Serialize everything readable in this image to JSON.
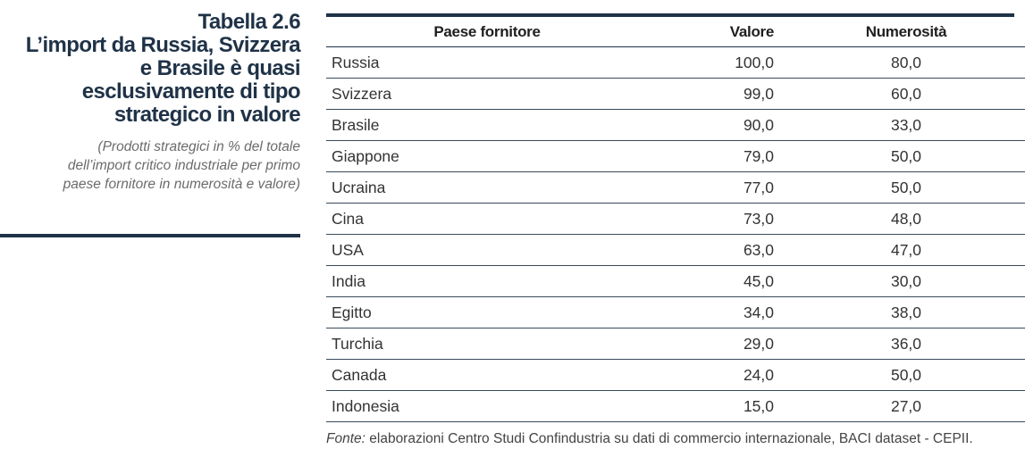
{
  "title": {
    "number": "Tabella 2.6",
    "lines": [
      "L’import da Russia, Svizzera",
      "e Brasile è quasi",
      "esclusivamente di tipo",
      "strategico in valore"
    ]
  },
  "subtitle": {
    "lines": [
      "(Prodotti strategici in % del totale",
      "dell’import critico industriale per primo",
      "paese fornitore in numerosità e valore)"
    ]
  },
  "table": {
    "headers": [
      "Paese fornitore",
      "Valore",
      "Numerosità"
    ],
    "rows": [
      [
        "Russia",
        "100,0",
        "80,0"
      ],
      [
        "Svizzera",
        "99,0",
        "60,0"
      ],
      [
        "Brasile",
        "90,0",
        "33,0"
      ],
      [
        "Giappone",
        "79,0",
        "50,0"
      ],
      [
        "Ucraina",
        "77,0",
        "50,0"
      ],
      [
        "Cina",
        "73,0",
        "48,0"
      ],
      [
        "USA",
        "63,0",
        "47,0"
      ],
      [
        "India",
        "45,0",
        "30,0"
      ],
      [
        "Egitto",
        "34,0",
        "38,0"
      ],
      [
        "Turchia",
        "29,0",
        "36,0"
      ],
      [
        "Canada",
        "24,0",
        "50,0"
      ],
      [
        "Indonesia",
        "15,0",
        "27,0"
      ]
    ]
  },
  "source": {
    "label": "Fonte:",
    "text": " elaborazioni Centro Studi Confindustria su dati di commercio internazionale, BACI dataset - CEPII."
  },
  "colors": {
    "accent": "#1f3247",
    "subtitle": "#6b6b6b"
  }
}
